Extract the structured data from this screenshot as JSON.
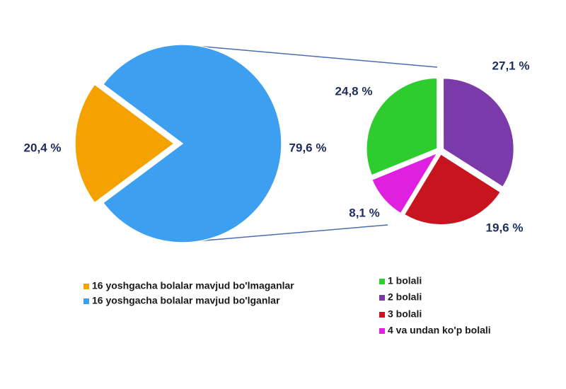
{
  "chart_data": [
    {
      "type": "pie",
      "categories": [
        "16 yoshgacha bolalar mavjud bo'lmaganlar",
        "16 yoshgacha bolalar mavjud bo'lganlar"
      ],
      "values": [
        20.4,
        79.6
      ],
      "value_labels": [
        "20,4 %",
        "79,6 %"
      ],
      "colors": [
        "#f5a100",
        "#3d9ff0"
      ]
    },
    {
      "type": "pie",
      "categories": [
        "1 bolali",
        "2 bolali",
        "3 bolali",
        "4 va undan ko'p bolali"
      ],
      "values": [
        24.8,
        27.1,
        19.6,
        8.1
      ],
      "value_labels": [
        "24,8 %",
        "27,1 %",
        "19,6 %",
        "8,1 %"
      ],
      "colors": [
        "#2fcc2f",
        "#7b3aa9",
        "#c8141e",
        "#e020e0"
      ]
    }
  ]
}
